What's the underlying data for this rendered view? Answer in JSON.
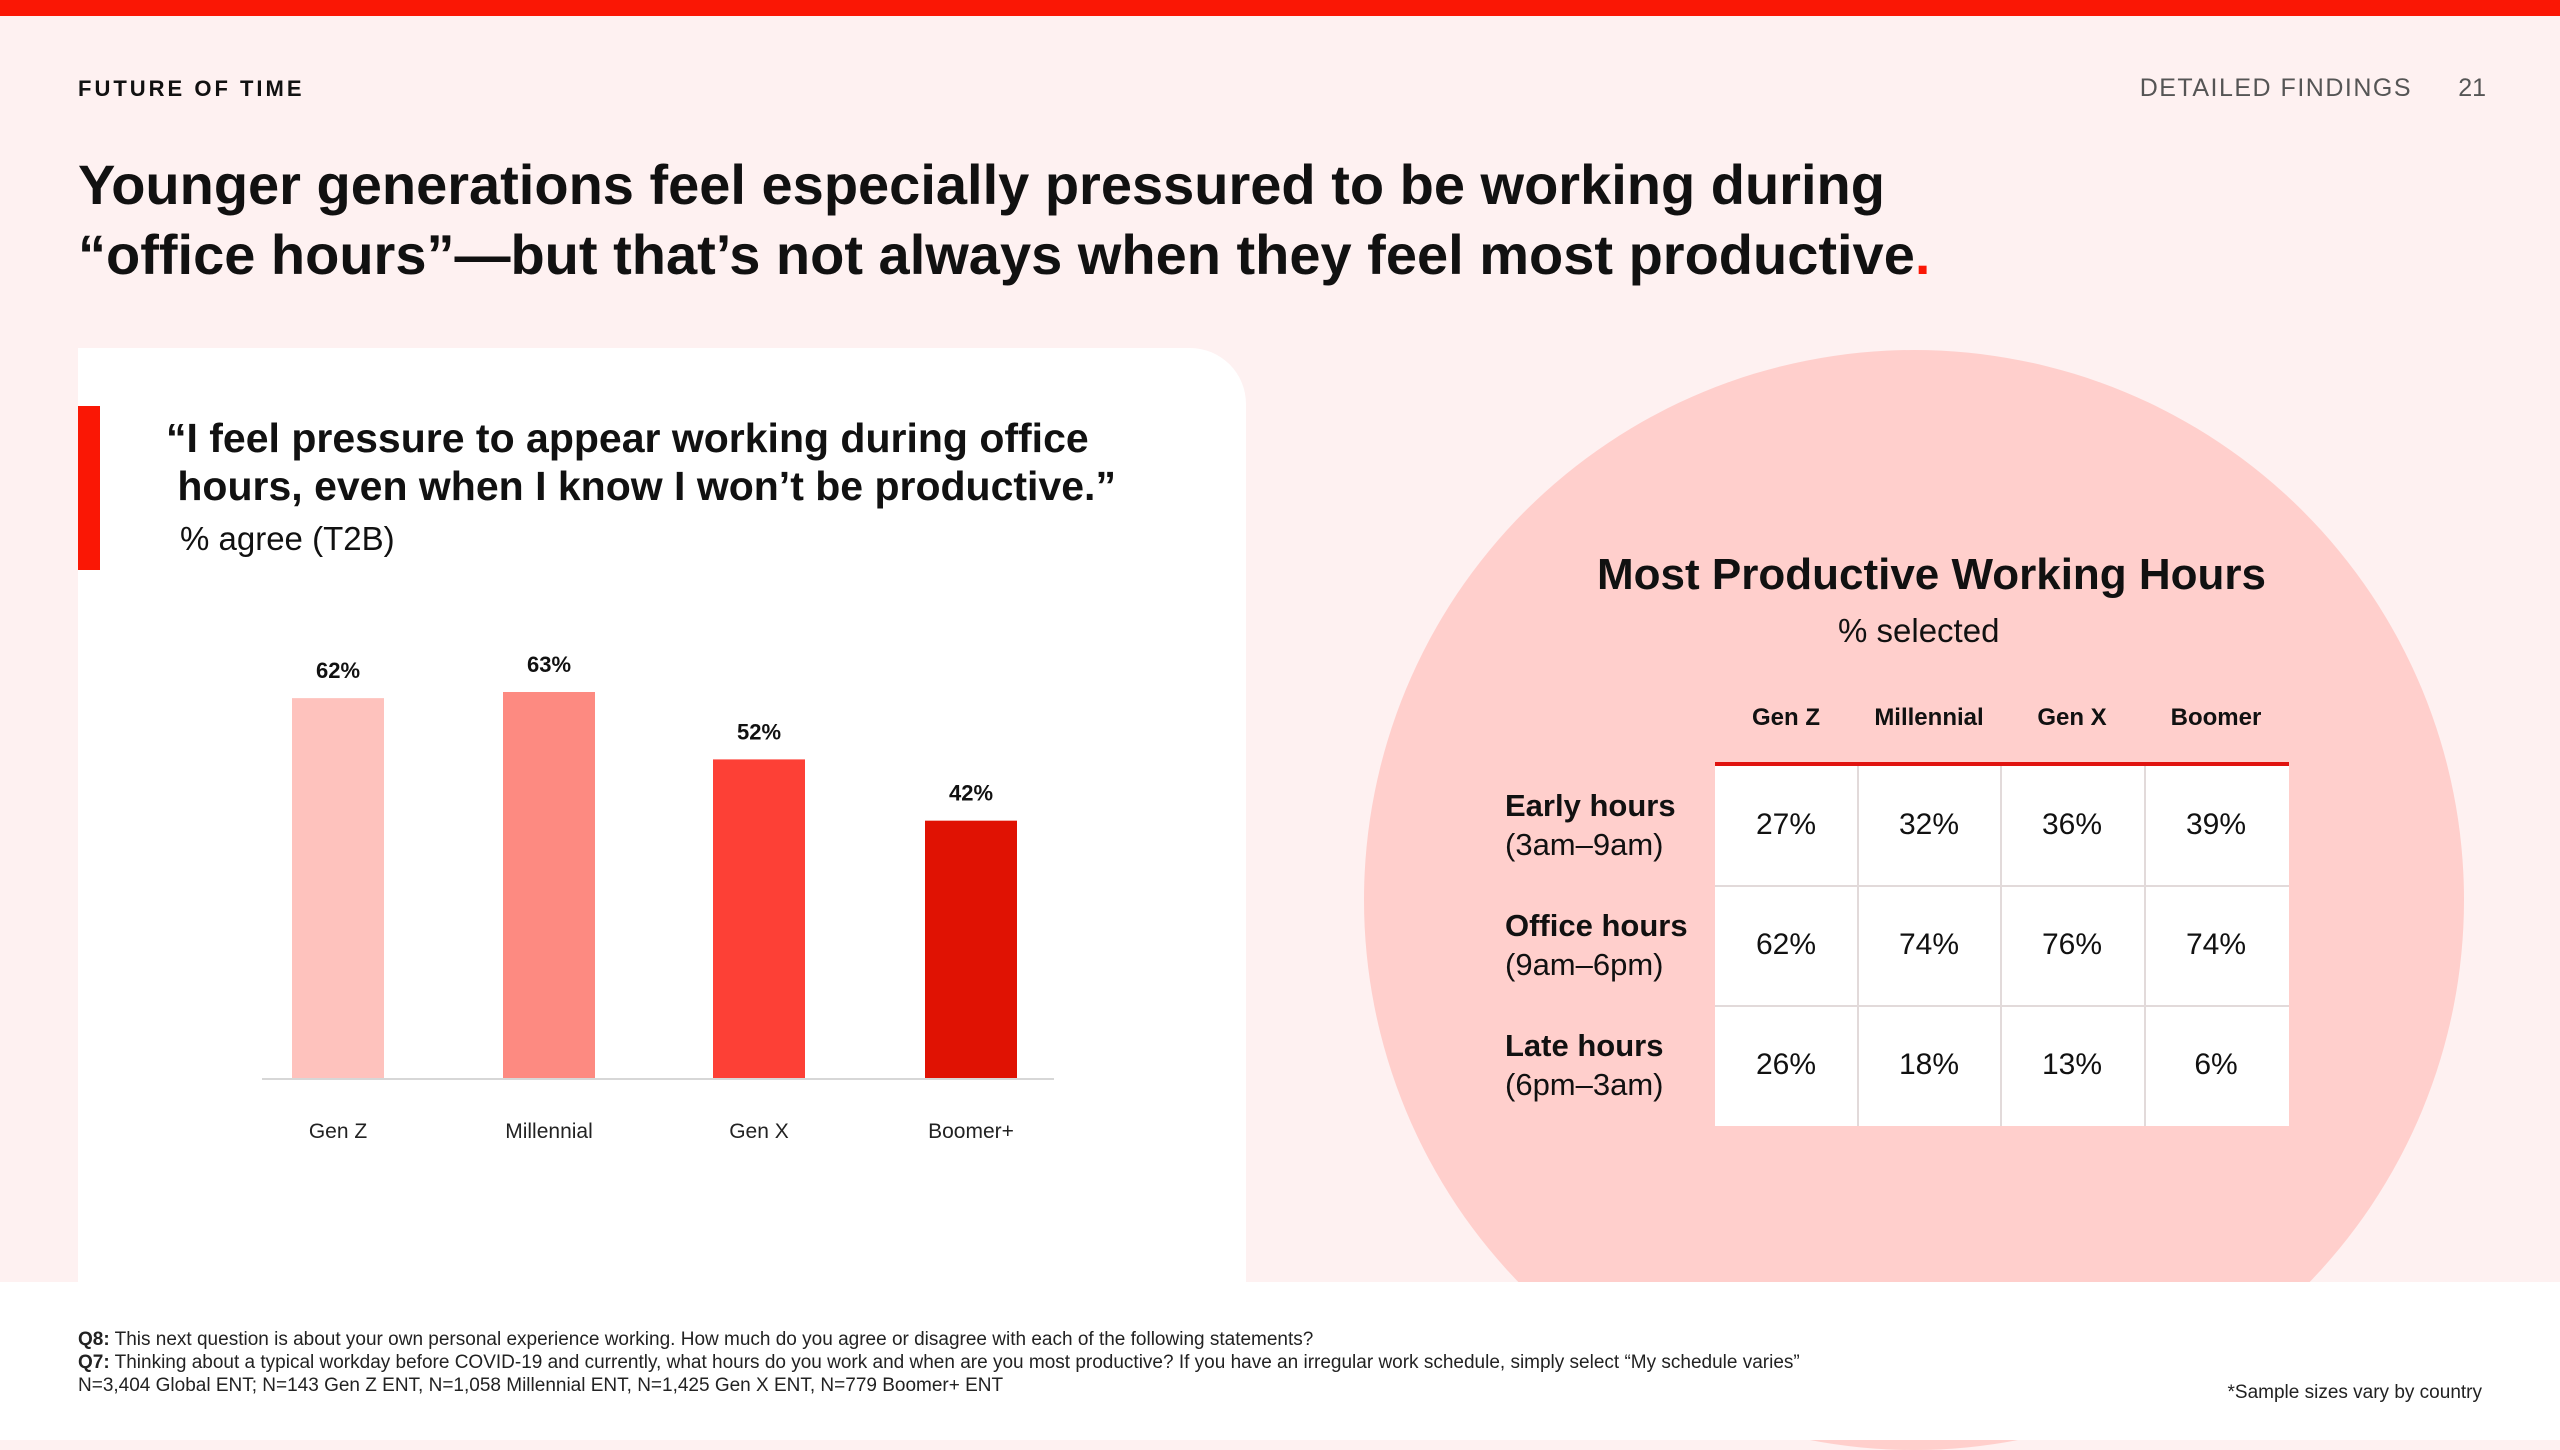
{
  "header": {
    "brand": "FUTURE OF TIME",
    "section": "DETAILED FINDINGS",
    "page_number": "21"
  },
  "headline": {
    "line1": "Younger generations feel especially pressured to be working during",
    "line2": "“office hours”—but that’s not always when they feel most productive",
    "dot": "."
  },
  "left_panel": {
    "quote_line1": "“I feel pressure to appear working during office",
    "quote_line2": " hours, even when I know I won’t be productive.”",
    "subtitle": "% agree (T2B)"
  },
  "chart_data": [
    {
      "type": "bar",
      "title": "“I feel pressure to appear working during office hours, even when I know I won’t be productive.”",
      "subtitle": "% agree (T2B)",
      "categories": [
        "Gen Z",
        "Millennial",
        "Gen X",
        "Boomer+"
      ],
      "values": [
        62,
        63,
        52,
        42
      ],
      "value_labels": [
        "62%",
        "63%",
        "52%",
        "42%"
      ],
      "bar_colors": [
        "#fec2bd",
        "#fd8a81",
        "#fd4036",
        "#e01203"
      ],
      "ylim": [
        0,
        63
      ],
      "grid": false,
      "legend": "none"
    },
    {
      "type": "table",
      "title": "Most Productive Working Hours",
      "subtitle": "% selected",
      "columns": [
        "Gen Z",
        "Millennial",
        "Gen X",
        "Boomer"
      ],
      "rows": [
        {
          "label": "Early hours",
          "range": "(3am–9am)",
          "values": [
            "27%",
            "32%",
            "36%",
            "39%"
          ]
        },
        {
          "label": "Office hours",
          "range": "(9am–6pm)",
          "values": [
            "62%",
            "74%",
            "76%",
            "74%"
          ]
        },
        {
          "label": "Late hours",
          "range": "(6pm–3am)",
          "values": [
            "26%",
            "18%",
            "13%",
            "6%"
          ]
        }
      ]
    }
  ],
  "footer": {
    "q8_label": "Q8:",
    "q8_text": " This next question is about your own personal experience working. How much do you agree or disagree with each of the following statements?",
    "q7_label": "Q7:",
    "q7_text": " Thinking about a typical workday before COVID-19 and currently, what hours do you work and when are you most productive? If you have an irregular work schedule, simply select “My schedule varies”",
    "sample_sizes": "N=3,404 Global ENT; N=143 Gen Z ENT, N=1,058 Millennial ENT, N=1,425 Gen X ENT, N=779 Boomer+ ENT",
    "sample_note": "*Sample sizes vary by country"
  },
  "colors": {
    "accent": "#fa1705",
    "background": "#fef1f1",
    "circle": "#ffcfcc"
  }
}
